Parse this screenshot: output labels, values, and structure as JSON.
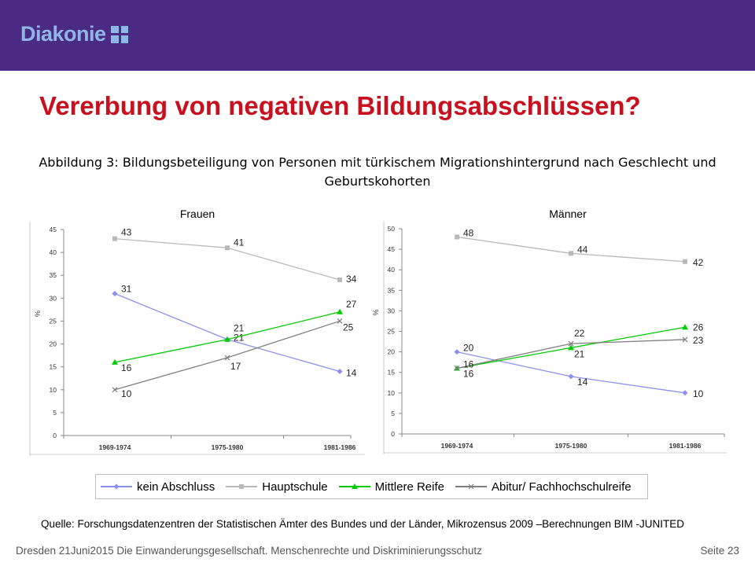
{
  "header": {
    "logo_text": "Diakonie"
  },
  "title": "Vererbung von negativen Bildungsabschlüssen?",
  "figure_caption_line1": "Abbildung 3: Bildungsbeteiligung von Personen mit türkischem Migrationshintergrund nach Geschlecht und",
  "figure_caption_line2": "Geburtskohorten",
  "legend": [
    {
      "name": "kein Abschluss",
      "color": "#8c8ff0",
      "marker": "diamond"
    },
    {
      "name": "Hauptschule",
      "color": "#b9b9b9",
      "marker": "square"
    },
    {
      "name": "Mittlere Reife",
      "color": "#00cc00",
      "marker": "triangle"
    },
    {
      "name": "Abitur/ Fachhochschulreife",
      "color": "#7f7f7f",
      "marker": "x"
    }
  ],
  "chart_data": [
    {
      "type": "line",
      "title": "Frauen",
      "ylabel": "%",
      "categories": [
        "1969-1974",
        "1975-1980",
        "1981-1986"
      ],
      "ylim": [
        0,
        45
      ],
      "yticks": [
        0,
        5,
        10,
        15,
        20,
        25,
        30,
        35,
        40,
        45
      ],
      "series": [
        {
          "name": "kein Abschluss",
          "values": [
            31,
            21,
            14
          ]
        },
        {
          "name": "Hauptschule",
          "values": [
            43,
            41,
            34
          ]
        },
        {
          "name": "Mittlere Reife",
          "values": [
            16,
            21,
            27
          ]
        },
        {
          "name": "Abitur/ Fachhochschulreife",
          "values": [
            10,
            17,
            25
          ]
        }
      ]
    },
    {
      "type": "line",
      "title": "Männer",
      "ylabel": "%",
      "categories": [
        "1969-1974",
        "1975-1980",
        "1981-1986"
      ],
      "ylim": [
        0,
        50
      ],
      "yticks": [
        0,
        5,
        10,
        15,
        20,
        25,
        30,
        35,
        40,
        45,
        50
      ],
      "series": [
        {
          "name": "kein Abschluss",
          "values": [
            20,
            14,
            10
          ]
        },
        {
          "name": "Hauptschule",
          "values": [
            48,
            44,
            42
          ]
        },
        {
          "name": "Mittlere Reife",
          "values": [
            16,
            21,
            26
          ]
        },
        {
          "name": "Abitur/ Fachhochschulreife",
          "values": [
            16,
            22,
            23
          ]
        }
      ]
    }
  ],
  "source": "Quelle: Forschungsdatenzentren der Statistischen Ämter des Bundes und der Länder, Mikrozensus 2009 –Berechnungen BIM -JUNITED",
  "footer": {
    "left": "Dresden 21Juni2015 Die Einwanderungsgesellschaft. Menschenrechte und Diskriminierungsschutz",
    "page": "Seite 23"
  }
}
